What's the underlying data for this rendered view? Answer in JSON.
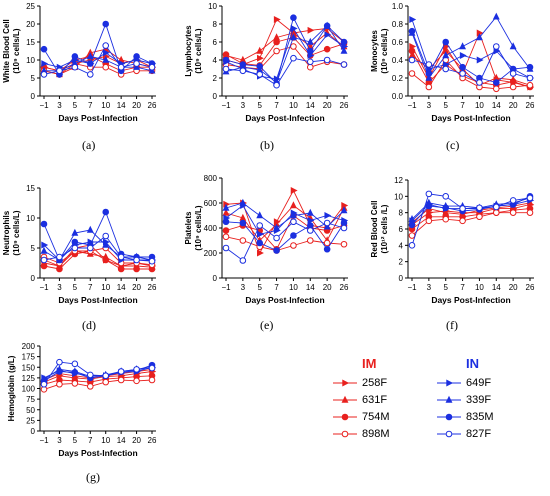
{
  "x_ticks": [
    "-1",
    "3",
    "5",
    "7",
    "10",
    "14",
    "20",
    "26"
  ],
  "legend": {
    "groups": [
      {
        "title": "IM",
        "color": "#e8201e",
        "entries": [
          "258F",
          "631F",
          "754M",
          "898M"
        ]
      },
      {
        "title": "IN",
        "color": "#1b2fe0",
        "entries": [
          "649F",
          "339F",
          "835M",
          "827F"
        ]
      }
    ]
  },
  "series_styles": [
    {
      "name": "258F",
      "color": "#e8201e",
      "marker": "triangle-right",
      "fill": true
    },
    {
      "name": "631F",
      "color": "#e8201e",
      "marker": "triangle-up",
      "fill": true
    },
    {
      "name": "754M",
      "color": "#e8201e",
      "marker": "circle",
      "fill": true
    },
    {
      "name": "898M",
      "color": "#e8201e",
      "marker": "circle",
      "fill": false
    },
    {
      "name": "649F",
      "color": "#1b2fe0",
      "marker": "triangle-right",
      "fill": true
    },
    {
      "name": "339F",
      "color": "#1b2fe0",
      "marker": "triangle-up",
      "fill": true
    },
    {
      "name": "835M",
      "color": "#1b2fe0",
      "marker": "circle",
      "fill": true
    },
    {
      "name": "827F",
      "color": "#1b2fe0",
      "marker": "circle",
      "fill": false
    }
  ],
  "chart_data": [
    {
      "id": "a",
      "letter": "(a)",
      "type": "line",
      "ylabel": "White Blood Cell (10⁹ cells/L)",
      "xlabel": "Days Post-Infection",
      "ylim": [
        0,
        25
      ],
      "yticks": [
        0,
        5,
        10,
        15,
        20,
        25
      ],
      "series": [
        {
          "name": "258F",
          "values": [
            8,
            7,
            9,
            10,
            11,
            9,
            10,
            8
          ]
        },
        {
          "name": "631F",
          "values": [
            7,
            6,
            8,
            12,
            13,
            10,
            9,
            8
          ]
        },
        {
          "name": "754M",
          "values": [
            8,
            7,
            10,
            11,
            9,
            7,
            8,
            8
          ]
        },
        {
          "name": "898M",
          "values": [
            7,
            6,
            9,
            8,
            8,
            6,
            7,
            7
          ]
        },
        {
          "name": "649F",
          "values": [
            9,
            8,
            10,
            9,
            12,
            9,
            10,
            9
          ]
        },
        {
          "name": "339F",
          "values": [
            7,
            7,
            9,
            11,
            10,
            8,
            8,
            7
          ]
        },
        {
          "name": "835M",
          "values": [
            13,
            6,
            11,
            9,
            20,
            7,
            11,
            9
          ]
        },
        {
          "name": "827F",
          "values": [
            6,
            7,
            8,
            6,
            14,
            8,
            9,
            8
          ]
        }
      ]
    },
    {
      "id": "b",
      "letter": "(b)",
      "type": "line",
      "ylabel": "Lymphocytes (10⁹ cells/L)",
      "xlabel": "Days Post-Infection",
      "ylim": [
        0,
        10
      ],
      "yticks": [
        0,
        2,
        4,
        6,
        8,
        10
      ],
      "series": [
        {
          "name": "258F",
          "values": [
            4.0,
            3.5,
            4.2,
            8.5,
            7.0,
            7.3,
            7.5,
            6.0
          ]
        },
        {
          "name": "631F",
          "values": [
            4.5,
            4.0,
            5.0,
            6.5,
            7.0,
            5.5,
            7.0,
            5.5
          ]
        },
        {
          "name": "754M",
          "values": [
            4.6,
            3.6,
            3.4,
            6.0,
            6.5,
            4.5,
            5.2,
            5.8
          ]
        },
        {
          "name": "898M",
          "values": [
            3.5,
            3.2,
            3.0,
            5.0,
            5.5,
            3.2,
            3.8,
            3.5
          ]
        },
        {
          "name": "649F",
          "values": [
            3.8,
            3.0,
            2.2,
            1.9,
            7.5,
            4.5,
            6.8,
            5.5
          ]
        },
        {
          "name": "339F",
          "values": [
            2.7,
            3.2,
            2.9,
            1.5,
            6.5,
            6.0,
            7.8,
            5.0
          ]
        },
        {
          "name": "835M",
          "values": [
            4.0,
            3.5,
            3.3,
            1.4,
            8.7,
            5.0,
            7.8,
            6.0
          ]
        },
        {
          "name": "827F",
          "values": [
            3.0,
            2.8,
            2.4,
            1.2,
            4.2,
            3.8,
            4.0,
            3.5
          ]
        }
      ]
    },
    {
      "id": "c",
      "letter": "(c)",
      "type": "line",
      "ylabel": "Monocytes (10⁹ cells/L)",
      "xlabel": "Days Post-Infection",
      "ylim": [
        0,
        1.0
      ],
      "yticks": [
        0.0,
        0.2,
        0.4,
        0.6,
        0.8,
        1.0
      ],
      "series": [
        {
          "name": "258F",
          "values": [
            0.55,
            0.2,
            0.55,
            0.25,
            0.7,
            0.18,
            0.15,
            0.1
          ]
        },
        {
          "name": "631F",
          "values": [
            0.45,
            0.3,
            0.5,
            0.3,
            0.12,
            0.2,
            0.18,
            0.12
          ]
        },
        {
          "name": "754M",
          "values": [
            0.5,
            0.15,
            0.35,
            0.22,
            0.15,
            0.12,
            0.16,
            0.1
          ]
        },
        {
          "name": "898M",
          "values": [
            0.25,
            0.1,
            0.4,
            0.2,
            0.1,
            0.08,
            0.1,
            0.12
          ]
        },
        {
          "name": "649F",
          "values": [
            0.85,
            0.3,
            0.35,
            0.45,
            0.4,
            0.5,
            0.3,
            0.2
          ]
        },
        {
          "name": "339F",
          "values": [
            0.7,
            0.2,
            0.45,
            0.55,
            0.65,
            0.88,
            0.55,
            0.3
          ]
        },
        {
          "name": "835M",
          "values": [
            0.72,
            0.25,
            0.6,
            0.32,
            0.2,
            0.15,
            0.3,
            0.32
          ]
        },
        {
          "name": "827F",
          "values": [
            0.4,
            0.35,
            0.3,
            0.25,
            0.15,
            0.55,
            0.25,
            0.2
          ]
        }
      ]
    },
    {
      "id": "d",
      "letter": "(d)",
      "type": "line",
      "ylabel": "Neutrophils (10⁹ cells/L)",
      "xlabel": "Days Post-Infection",
      "ylim": [
        0,
        15
      ],
      "yticks": [
        0,
        5,
        10,
        15
      ],
      "series": [
        {
          "name": "258F",
          "values": [
            3.0,
            2.0,
            5.0,
            5.5,
            3.0,
            2.0,
            2.5,
            2.0
          ]
        },
        {
          "name": "631F",
          "values": [
            2.5,
            2.0,
            4.5,
            4.0,
            3.5,
            2.0,
            2.0,
            1.8
          ]
        },
        {
          "name": "754M",
          "values": [
            2.0,
            1.5,
            4.0,
            4.5,
            3.0,
            1.5,
            1.5,
            1.5
          ]
        },
        {
          "name": "898M",
          "values": [
            3.5,
            2.5,
            4.5,
            4.5,
            5.0,
            2.5,
            2.5,
            2.2
          ]
        },
        {
          "name": "649F",
          "values": [
            5.5,
            3.0,
            5.5,
            6.0,
            6.0,
            3.0,
            3.0,
            3.0
          ]
        },
        {
          "name": "339F",
          "values": [
            4.5,
            3.0,
            7.5,
            8.0,
            5.5,
            3.5,
            3.5,
            3.0
          ]
        },
        {
          "name": "835M",
          "values": [
            9.0,
            3.0,
            6.0,
            5.5,
            11.0,
            4.0,
            3.5,
            3.5
          ]
        },
        {
          "name": "827F",
          "values": [
            3.0,
            3.5,
            5.0,
            5.0,
            7.0,
            3.5,
            3.0,
            2.8
          ]
        }
      ]
    },
    {
      "id": "e",
      "letter": "(e)",
      "type": "line",
      "ylabel": "Platelets (10⁹ cells/L)",
      "xlabel": "Days Post-Infection",
      "ylim": [
        0,
        800
      ],
      "yticks": [
        0,
        200,
        400,
        600,
        800
      ],
      "series": [
        {
          "name": "258F",
          "values": [
            590,
            600,
            200,
            450,
            700,
            420,
            400,
            580
          ]
        },
        {
          "name": "631F",
          "values": [
            520,
            480,
            300,
            430,
            580,
            480,
            300,
            560
          ]
        },
        {
          "name": "754M",
          "values": [
            380,
            420,
            380,
            230,
            500,
            400,
            380,
            420
          ]
        },
        {
          "name": "898M",
          "values": [
            330,
            300,
            250,
            220,
            260,
            300,
            280,
            270
          ]
        },
        {
          "name": "649F",
          "values": [
            480,
            580,
            350,
            380,
            520,
            460,
            500,
            460
          ]
        },
        {
          "name": "339F",
          "values": [
            560,
            600,
            500,
            400,
            500,
            520,
            410,
            540
          ]
        },
        {
          "name": "835M",
          "values": [
            450,
            440,
            280,
            220,
            340,
            420,
            230,
            440
          ]
        },
        {
          "name": "827F",
          "values": [
            240,
            140,
            420,
            320,
            450,
            380,
            440,
            400
          ]
        }
      ]
    },
    {
      "id": "f",
      "letter": "(f)",
      "type": "line",
      "ylabel": "Red Blood Cell (10¹² cells /L)",
      "xlabel": "Days Post-Infection",
      "ylim": [
        0,
        12
      ],
      "yticks": [
        0,
        2,
        4,
        6,
        8,
        10,
        12
      ],
      "series": [
        {
          "name": "258F",
          "values": [
            6.5,
            8.0,
            8.2,
            8.0,
            8.0,
            8.5,
            8.5,
            9.0
          ]
        },
        {
          "name": "631F",
          "values": [
            6.8,
            8.5,
            8.0,
            7.8,
            8.3,
            8.6,
            8.8,
            9.2
          ]
        },
        {
          "name": "754M",
          "values": [
            6.0,
            7.5,
            7.5,
            7.5,
            7.8,
            8.0,
            8.3,
            8.5
          ]
        },
        {
          "name": "898M",
          "values": [
            5.2,
            7.0,
            7.2,
            7.0,
            7.5,
            8.0,
            8.0,
            8.0
          ]
        },
        {
          "name": "649F",
          "values": [
            7.0,
            9.0,
            8.5,
            8.5,
            8.5,
            8.8,
            9.0,
            9.5
          ]
        },
        {
          "name": "339F",
          "values": [
            7.2,
            9.2,
            8.8,
            8.8,
            8.6,
            9.0,
            9.2,
            9.8
          ]
        },
        {
          "name": "835M",
          "values": [
            6.5,
            8.8,
            8.6,
            8.2,
            8.4,
            8.8,
            9.0,
            10.0
          ]
        },
        {
          "name": "827F",
          "values": [
            4.0,
            10.3,
            10.0,
            8.5,
            8.6,
            8.7,
            9.5,
            9.8
          ]
        }
      ]
    },
    {
      "id": "g",
      "letter": "(g)",
      "type": "line",
      "ylabel": "Hemoglobin (g/L)",
      "xlabel": "Days Post-Infection",
      "ylim": [
        0,
        200
      ],
      "yticks": [
        0,
        25,
        50,
        75,
        100,
        125,
        150,
        175,
        200
      ],
      "series": [
        {
          "name": "258F",
          "values": [
            115,
            130,
            125,
            122,
            128,
            130,
            135,
            140
          ]
        },
        {
          "name": "631F",
          "values": [
            120,
            135,
            130,
            125,
            130,
            135,
            140,
            145
          ]
        },
        {
          "name": "754M",
          "values": [
            110,
            120,
            118,
            115,
            122,
            125,
            128,
            130
          ]
        },
        {
          "name": "898M",
          "values": [
            98,
            110,
            112,
            105,
            115,
            120,
            118,
            120
          ]
        },
        {
          "name": "649F",
          "values": [
            125,
            142,
            135,
            130,
            130,
            138,
            140,
            150
          ]
        },
        {
          "name": "339F",
          "values": [
            122,
            145,
            140,
            128,
            132,
            140,
            145,
            152
          ]
        },
        {
          "name": "835M",
          "values": [
            118,
            140,
            138,
            125,
            130,
            140,
            142,
            155
          ]
        },
        {
          "name": "827F",
          "values": [
            110,
            162,
            158,
            132,
            130,
            140,
            145,
            148
          ]
        }
      ]
    }
  ]
}
